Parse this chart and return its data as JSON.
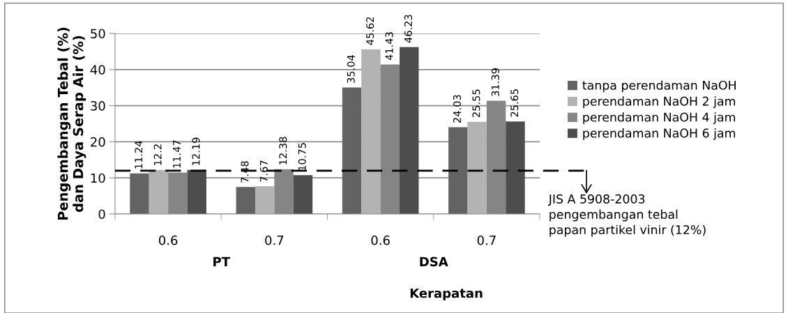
{
  "chart_data": {
    "type": "bar",
    "xlabel": "Kerapatan",
    "ylabel": "Pengembangan Tebal (%)\ndan Daya Serap Air (%)",
    "categories": [
      "0.6",
      "0.7",
      "0.6",
      "0.7"
    ],
    "series": [
      {
        "name": "tanpa perendaman NaOH",
        "color": "#636363",
        "values": [
          11.24,
          7.48,
          35.04,
          24.03
        ]
      },
      {
        "name": "perendaman NaOH 2 jam",
        "color": "#b3b3b3",
        "values": [
          12.2,
          7.67,
          45.62,
          25.55
        ]
      },
      {
        "name": "perendaman NaOH 4 jam",
        "color": "#858585",
        "values": [
          11.47,
          12.38,
          41.43,
          31.39
        ]
      },
      {
        "name": "perendaman NaOH 6 jam",
        "color": "#4d4d4d",
        "values": [
          12.19,
          10.75,
          46.23,
          25.65
        ]
      }
    ],
    "ylim": [
      0,
      50
    ],
    "yticks": [
      0,
      10,
      20,
      30,
      40,
      50
    ],
    "grid": "y",
    "legend": "right",
    "data_labels": true,
    "ref_lines": [
      {
        "axis": "y",
        "value": 12,
        "label": "JIS A 5908-2003\npengembangan tebal\npapan partikel vinir (12%)",
        "color": "#000000",
        "line_style": "dashed"
      }
    ],
    "annotations": [
      "PT",
      "DSA"
    ]
  }
}
